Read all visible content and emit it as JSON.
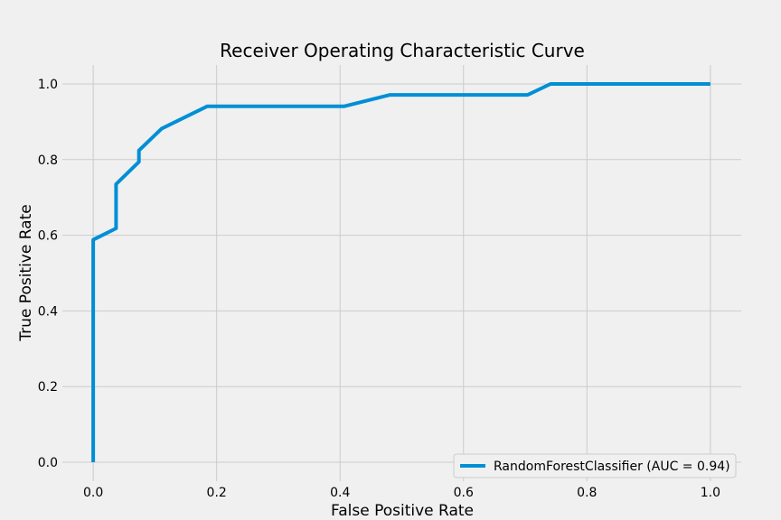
{
  "chart_data": {
    "type": "line",
    "title": "Receiver Operating Characteristic Curve",
    "xlabel": "False Positive Rate",
    "ylabel": "True Positive Rate",
    "xlim": [
      -0.05,
      1.05
    ],
    "ylim": [
      -0.05,
      1.05
    ],
    "xticks": [
      0.0,
      0.2,
      0.4,
      0.6,
      0.8,
      1.0
    ],
    "yticks": [
      0.0,
      0.2,
      0.4,
      0.6,
      0.8,
      1.0
    ],
    "xtick_labels": [
      "0.0",
      "0.2",
      "0.4",
      "0.6",
      "0.8",
      "1.0"
    ],
    "ytick_labels": [
      "0.0",
      "0.2",
      "0.4",
      "0.6",
      "0.8",
      "1.0"
    ],
    "grid": true,
    "legend_position": "lower-right",
    "series": [
      {
        "name": "RandomForestClassifier (AUC = 0.94)",
        "color": "#008fd5",
        "x": [
          0.0,
          0.0,
          0.0,
          0.037,
          0.037,
          0.074,
          0.074,
          0.111,
          0.185,
          0.407,
          0.481,
          0.704,
          0.741,
          1.0
        ],
        "y": [
          0.0,
          0.588,
          0.588,
          0.618,
          0.735,
          0.794,
          0.824,
          0.882,
          0.941,
          0.941,
          0.971,
          0.971,
          1.0,
          1.0
        ]
      }
    ]
  }
}
